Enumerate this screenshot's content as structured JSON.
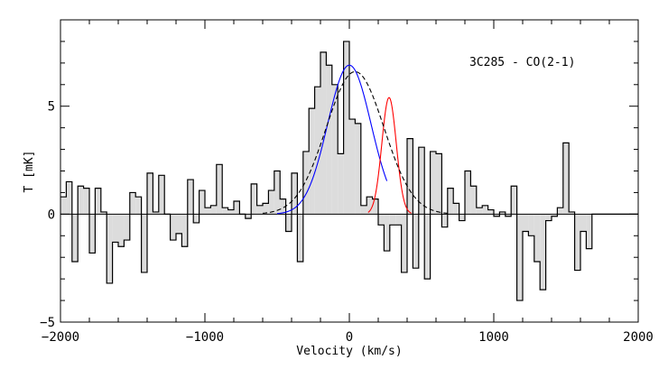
{
  "chart_data": {
    "type": "line",
    "title": "3C285 - CO(2-1)",
    "xlabel": "Velocity (km/s)",
    "ylabel": "T [mK]",
    "xlim": [
      -2000,
      2000
    ],
    "ylim": [
      -5,
      9
    ],
    "xticks": [
      -2000,
      -1000,
      0,
      1000,
      2000
    ],
    "xtick_labels": [
      "−2000",
      "−1000",
      "0",
      "1000",
      "2000"
    ],
    "yticks": [
      -5,
      0,
      5
    ],
    "ytick_labels": [
      "−5",
      "0",
      "5"
    ],
    "colors": {
      "spectrum": "#000000",
      "fill": "#dcdcdc",
      "blue_fit": "#0000ff",
      "red_fit": "#ff0000",
      "total_fit": "#000000"
    },
    "series": [
      {
        "name": "spectrum",
        "style": "step-filled",
        "bin_width": 40,
        "x": [
          -2000,
          -1960,
          -1920,
          -1880,
          -1840,
          -1800,
          -1760,
          -1720,
          -1680,
          -1640,
          -1600,
          -1560,
          -1520,
          -1480,
          -1440,
          -1400,
          -1360,
          -1320,
          -1280,
          -1240,
          -1200,
          -1160,
          -1120,
          -1080,
          -1040,
          -1000,
          -960,
          -920,
          -880,
          -840,
          -800,
          -760,
          -720,
          -680,
          -640,
          -600,
          -560,
          -520,
          -480,
          -440,
          -400,
          -360,
          -320,
          -280,
          -240,
          -200,
          -160,
          -120,
          -80,
          -40,
          0,
          40,
          80,
          120,
          160,
          200,
          240,
          280,
          320,
          360,
          400,
          440,
          480,
          520,
          560,
          600,
          640,
          680,
          720,
          760,
          800,
          840,
          880,
          920,
          960,
          1000,
          1040,
          1080,
          1120,
          1160,
          1200,
          1240,
          1280,
          1320,
          1360,
          1400,
          1440,
          1480,
          1520,
          1560,
          1600,
          1640,
          1680,
          1720,
          1760,
          1800,
          1840,
          1880,
          1920,
          1960
        ],
        "y": [
          0.8,
          1.5,
          -2.2,
          1.3,
          1.2,
          -1.8,
          1.2,
          0.1,
          -3.2,
          -1.3,
          -1.5,
          -1.2,
          1.0,
          0.8,
          -2.7,
          1.9,
          0.1,
          1.8,
          0.0,
          -1.2,
          -0.9,
          -1.5,
          1.6,
          -0.4,
          1.1,
          0.3,
          0.4,
          2.3,
          0.3,
          0.2,
          0.6,
          0.0,
          -0.2,
          1.4,
          0.4,
          0.5,
          1.1,
          2.0,
          0.7,
          -0.8,
          1.9,
          -2.2,
          2.9,
          4.9,
          5.9,
          7.5,
          6.9,
          6.0,
          2.8,
          8.0,
          4.4,
          4.2,
          0.4,
          0.8,
          0.7,
          -0.5,
          -1.7,
          -0.5,
          -0.5,
          -2.7,
          3.5,
          -2.5,
          3.1,
          -3.0,
          2.9,
          2.8,
          -0.6,
          1.2,
          0.5,
          -0.3,
          2.0,
          1.3,
          0.3,
          0.4,
          0.2,
          -0.1,
          0.1,
          -0.1,
          1.3,
          -4.0,
          -0.8,
          -1.0,
          -2.2,
          -3.5,
          -0.3,
          -0.1,
          0.3,
          3.3,
          0.1,
          -2.6,
          -0.8,
          -1.6,
          0.0,
          0.0,
          0.0,
          0.0,
          0.0,
          0.0,
          0.0,
          0.0
        ]
      },
      {
        "name": "blue-gaussian-fit",
        "style": "curve",
        "amplitude": 6.9,
        "center": 0,
        "sigma": 150,
        "x_range": [
          -500,
          260
        ]
      },
      {
        "name": "red-gaussian-fit",
        "style": "curve",
        "amplitude": 5.4,
        "center": 275,
        "sigma": 50,
        "x_range": [
          130,
          430
        ]
      },
      {
        "name": "total-fit",
        "style": "dashed",
        "amplitude": 6.6,
        "center": 40,
        "sigma": 200,
        "x_range": [
          -600,
          700
        ]
      }
    ]
  }
}
